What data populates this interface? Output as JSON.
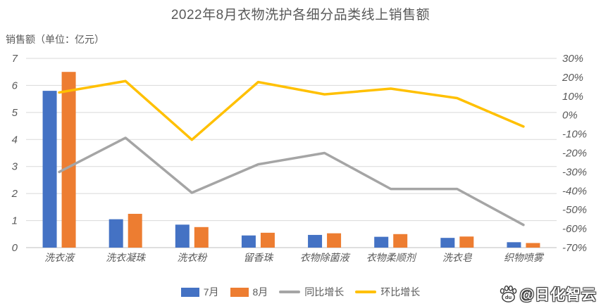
{
  "title": "2022年8月衣物洗护各细分品类线上销售额",
  "axis_unit_label": "销售额（单位：亿元）",
  "colors": {
    "bar_july": "#4472C4",
    "bar_august": "#ED7D31",
    "line_yoy": "#A5A5A5",
    "line_mom": "#FFC000",
    "gridline": "#D9D9D9",
    "axis_line": "#BFBFBF",
    "text": "#595959"
  },
  "chart_data": {
    "type": "bar",
    "subtype": "grouped-bars-with-lines-combo",
    "title": "2022年8月衣物洗护各细分品类线上销售额",
    "ylabel": "销售额（单位：亿元）",
    "categories": [
      "洗衣液",
      "洗衣凝珠",
      "洗衣粉",
      "留香珠",
      "衣物除菌液",
      "衣物柔顺剂",
      "洗衣皂",
      "织物喷雾"
    ],
    "series": [
      {
        "name": "7月",
        "type": "bar",
        "axis": "left",
        "color": "#4472C4",
        "values": [
          5.8,
          1.05,
          0.85,
          0.45,
          0.47,
          0.4,
          0.36,
          0.2
        ]
      },
      {
        "name": "8月",
        "type": "bar",
        "axis": "left",
        "color": "#ED7D31",
        "values": [
          6.5,
          1.25,
          0.76,
          0.55,
          0.53,
          0.5,
          0.41,
          0.17
        ]
      },
      {
        "name": "同比增长",
        "type": "line",
        "axis": "right",
        "color": "#A5A5A5",
        "values_pct": [
          -30,
          -12,
          -41,
          -26,
          -20,
          -39,
          -39,
          -58
        ]
      },
      {
        "name": "环比增长",
        "type": "line",
        "axis": "right",
        "color": "#FFC000",
        "values_pct": [
          12,
          18,
          -13,
          17.5,
          11,
          14,
          9,
          -6
        ]
      }
    ],
    "left_axis": {
      "min": 0,
      "max": 7,
      "step": 1
    },
    "right_axis": {
      "min": -70,
      "max": 30,
      "step": 10,
      "suffix": "%"
    },
    "grid": "horizontal-only",
    "legend_position": "bottom"
  },
  "watermark": {
    "text": "@日化智云",
    "icon": "baidu-paw-icon",
    "icon_label": "du"
  }
}
